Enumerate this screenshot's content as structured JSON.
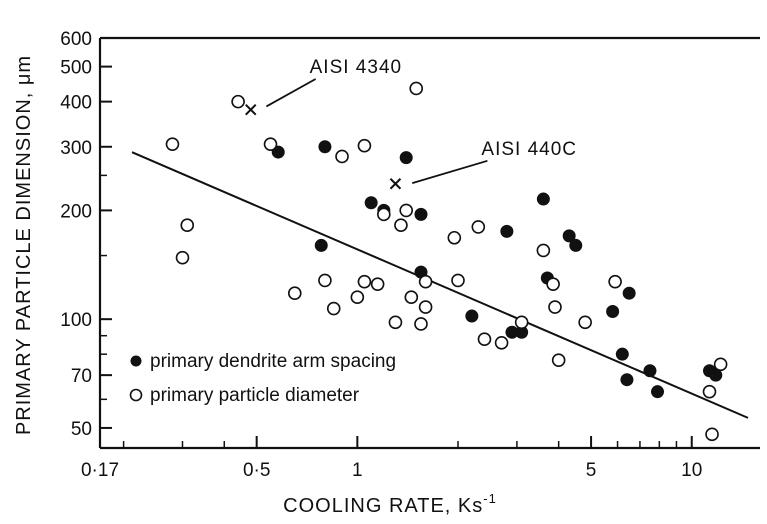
{
  "chart_data": {
    "type": "scatter",
    "xlabel": "COOLING RATE, Ks",
    "xlabel_sup": "-1",
    "ylabel": "PRIMARY PARTICLE DIMENSION, μm",
    "xscale": "log",
    "yscale": "log",
    "xlim": [
      0.17,
      16
    ],
    "ylim": [
      44,
      600
    ],
    "x_ticks": [
      {
        "value": 0.17,
        "label": "0·17"
      },
      {
        "value": 0.5,
        "label": "0·5"
      },
      {
        "value": 1,
        "label": "1"
      },
      {
        "value": 5,
        "label": "5"
      },
      {
        "value": 10,
        "label": "10"
      }
    ],
    "y_ticks": [
      {
        "value": 50,
        "label": "50"
      },
      {
        "value": 70,
        "label": "70"
      },
      {
        "value": 100,
        "label": "100"
      },
      {
        "value": 200,
        "label": "200"
      },
      {
        "value": 300,
        "label": "300"
      },
      {
        "value": 400,
        "label": "400"
      },
      {
        "value": 500,
        "label": "500"
      },
      {
        "value": 600,
        "label": "600"
      }
    ],
    "grid": false,
    "legend_position": "bottom-left",
    "series": [
      {
        "name": "primary dendrite arm spacing",
        "marker": "filled-circle",
        "points": [
          [
            0.58,
            290
          ],
          [
            0.78,
            160
          ],
          [
            0.8,
            300
          ],
          [
            1.1,
            210
          ],
          [
            1.2,
            200
          ],
          [
            1.4,
            280
          ],
          [
            1.55,
            195
          ],
          [
            1.55,
            135
          ],
          [
            2.2,
            102
          ],
          [
            2.8,
            175
          ],
          [
            2.9,
            92
          ],
          [
            3.1,
            92
          ],
          [
            3.6,
            215
          ],
          [
            3.7,
            130
          ],
          [
            4.3,
            170
          ],
          [
            4.5,
            160
          ],
          [
            5.8,
            105
          ],
          [
            6.2,
            80
          ],
          [
            6.4,
            68
          ],
          [
            6.5,
            118
          ],
          [
            7.5,
            72
          ],
          [
            7.9,
            63
          ],
          [
            11.3,
            72
          ],
          [
            11.8,
            70
          ]
        ]
      },
      {
        "name": "primary particle diameter",
        "marker": "open-circle",
        "points": [
          [
            0.28,
            305
          ],
          [
            0.3,
            148
          ],
          [
            0.31,
            182
          ],
          [
            0.44,
            400
          ],
          [
            0.55,
            305
          ],
          [
            0.65,
            118
          ],
          [
            0.8,
            128
          ],
          [
            0.85,
            107
          ],
          [
            0.9,
            282
          ],
          [
            1.0,
            115
          ],
          [
            1.05,
            302
          ],
          [
            1.05,
            127
          ],
          [
            1.15,
            125
          ],
          [
            1.2,
            195
          ],
          [
            1.3,
            98
          ],
          [
            1.35,
            182
          ],
          [
            1.4,
            200
          ],
          [
            1.45,
            115
          ],
          [
            1.5,
            435
          ],
          [
            1.55,
            97
          ],
          [
            1.6,
            108
          ],
          [
            1.6,
            127
          ],
          [
            1.95,
            168
          ],
          [
            2.0,
            128
          ],
          [
            2.3,
            180
          ],
          [
            2.4,
            88
          ],
          [
            2.7,
            86
          ],
          [
            3.1,
            98
          ],
          [
            3.6,
            155
          ],
          [
            3.85,
            125
          ],
          [
            3.9,
            108
          ],
          [
            4.0,
            77
          ],
          [
            4.8,
            98
          ],
          [
            5.9,
            127
          ],
          [
            11.3,
            63
          ],
          [
            11.5,
            48
          ],
          [
            12.2,
            75
          ]
        ]
      },
      {
        "name": "AISI 4340",
        "marker": "x",
        "points": [
          [
            0.48,
            380
          ]
        ]
      },
      {
        "name": "AISI 440C",
        "marker": "x",
        "points": [
          [
            1.3,
            237
          ]
        ]
      }
    ],
    "trend_line": {
      "x": [
        0.17,
        16
      ],
      "y": [
        305,
        54
      ]
    },
    "annotations": [
      {
        "text": "AISI 4340",
        "anchor": [
          0.72,
          480
        ],
        "target": [
          0.52,
          383
        ]
      },
      {
        "text": "AISI 440C",
        "anchor": [
          2.35,
          285
        ],
        "target": [
          1.42,
          235
        ]
      }
    ]
  }
}
